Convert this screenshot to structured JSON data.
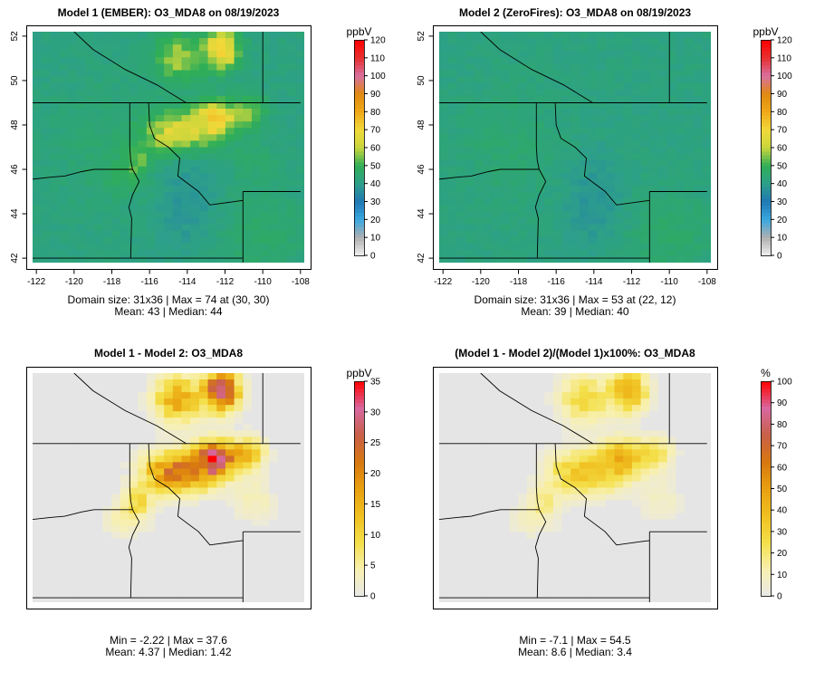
{
  "chart_data": [
    {
      "type": "heatmap",
      "title": "Model 1 (EMBER): O3_MDA8 on 08/19/2023",
      "colorbar_unit": "ppbV",
      "colorbar_ticks": [
        0,
        10,
        20,
        30,
        40,
        50,
        60,
        70,
        80,
        90,
        100,
        110,
        120
      ],
      "colorbar_range": [
        0,
        120
      ],
      "xlim": [
        -122.2,
        -107.8
      ],
      "ylim": [
        41.8,
        52.2
      ],
      "x_ticks": [
        -122,
        -120,
        -118,
        -116,
        -114,
        -112,
        -110,
        -108
      ],
      "y_ticks": [
        42,
        44,
        46,
        48,
        50,
        52
      ],
      "grid_size": [
        31,
        36
      ],
      "stats_line1": "Domain size: 31x36 | Max = 74 at (30, 30)",
      "stats_line2": "Mean: 43 |  Median: 44",
      "max": 74,
      "mean": 43,
      "median": 44
    },
    {
      "type": "heatmap",
      "title": "Model 2 (ZeroFires): O3_MDA8 on 08/19/2023",
      "colorbar_unit": "ppbV",
      "colorbar_ticks": [
        0,
        10,
        20,
        30,
        40,
        50,
        60,
        70,
        80,
        90,
        100,
        110,
        120
      ],
      "colorbar_range": [
        0,
        120
      ],
      "xlim": [
        -122.2,
        -107.8
      ],
      "ylim": [
        41.8,
        52.2
      ],
      "x_ticks": [
        -122,
        -120,
        -118,
        -116,
        -114,
        -112,
        -110,
        -108
      ],
      "y_ticks": [
        42,
        44,
        46,
        48,
        50,
        52
      ],
      "grid_size": [
        31,
        36
      ],
      "stats_line1": "Domain size: 31x36 | Max = 53 at (22, 12)",
      "stats_line2": "Mean: 39 |  Median: 40",
      "max": 53,
      "mean": 39,
      "median": 40
    },
    {
      "type": "heatmap",
      "title": "Model 1 - Model 2: O3_MDA8",
      "colorbar_unit": "ppbV",
      "colorbar_ticks": [
        0,
        5,
        10,
        15,
        20,
        25,
        30,
        35
      ],
      "colorbar_range": [
        0,
        35
      ],
      "stats_line1": "Min = -2.22 | Max = 37.6",
      "stats_line2": "Mean: 4.37 |  Median: 1.42",
      "min": -2.22,
      "max": 37.6,
      "mean": 4.37,
      "median": 1.42
    },
    {
      "type": "heatmap",
      "title": "(Model 1 - Model 2)/(Model 1)x100%: O3_MDA8",
      "colorbar_unit": "%",
      "colorbar_ticks": [
        0,
        10,
        20,
        30,
        40,
        50,
        60,
        70,
        80,
        90,
        100
      ],
      "colorbar_range": [
        0,
        100
      ],
      "stats_line1": "Min = -7.1 | Max = 54.5",
      "stats_line2": "Mean: 8.6 |  Median: 3.4",
      "min": -7.1,
      "max": 54.5,
      "mean": 8.6,
      "median": 3.4
    }
  ],
  "colors": {
    "conc_scale": [
      "#f0f0f0",
      "#b0b0b0",
      "#3aa8e0",
      "#1f78b4",
      "#2d9f8a",
      "#2fae57",
      "#c8d63c",
      "#f2d93a",
      "#f0a818",
      "#e08a10",
      "#d870a0",
      "#e83030",
      "#ff0000"
    ],
    "diff_scale": [
      "#e8e8e8",
      "#f8f0b0",
      "#f4e04a",
      "#f0c020",
      "#e8a010",
      "#d87810",
      "#c86048",
      "#d868a0",
      "#ff0000"
    ],
    "nodata": "#e5e5e5"
  }
}
